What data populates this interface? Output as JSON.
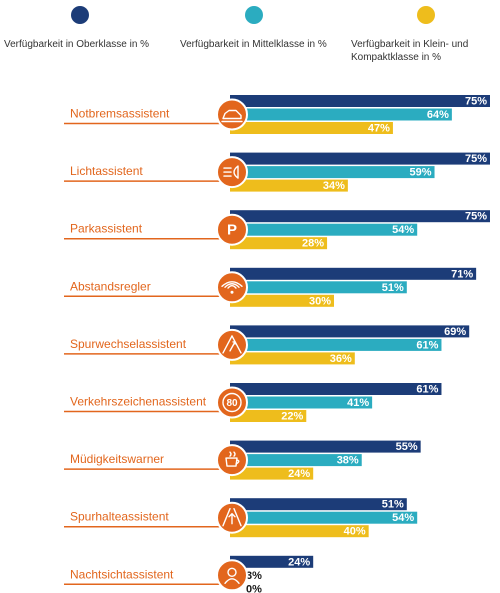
{
  "legend": [
    {
      "label": "Verfügbarkeit in Oberklasse in %",
      "color": "#1c3c78"
    },
    {
      "label": "Verfügbarkeit in Mittelklasse in %",
      "color": "#2bacc0"
    },
    {
      "label": "Verfügbarkeit in Klein- und Kompaktklasse in %",
      "color": "#eebd1c"
    }
  ],
  "colors": {
    "accent": "#e2661d",
    "oberklasse": "#1c3c78",
    "mittelklasse": "#2bacc0",
    "kompaktklasse": "#eebd1c"
  },
  "chart_data": {
    "type": "bar",
    "orientation": "horizontal",
    "categories": [
      "Notbremsassistent",
      "Lichtassistent",
      "Parkassistent",
      "Abstandsregler",
      "Spurwechselassistent",
      "Verkehrszeichenassistent",
      "Müdigkeitswarner",
      "Spurhalteassistent",
      "Nachtsichtassistent"
    ],
    "icons": [
      "car-brake-icon",
      "headlight-icon",
      "parking-icon",
      "distance-waves-icon",
      "lane-change-icon",
      "speed-sign-icon",
      "coffee-cup-icon",
      "lane-keep-icon",
      "night-vision-icon"
    ],
    "icon_labels": [
      "",
      "",
      "P",
      "",
      "",
      "80",
      "",
      "",
      ""
    ],
    "series": [
      {
        "name": "Verfügbarkeit in Oberklasse in %",
        "values": [
          75,
          75,
          75,
          71,
          69,
          61,
          55,
          51,
          24
        ]
      },
      {
        "name": "Verfügbarkeit in Mittelklasse in %",
        "values": [
          64,
          59,
          54,
          51,
          61,
          41,
          38,
          54,
          3
        ]
      },
      {
        "name": "Verfügbarkeit in Klein- und Kompaktklasse in %",
        "values": [
          47,
          34,
          28,
          30,
          36,
          22,
          24,
          40,
          0
        ]
      }
    ],
    "value_suffix": "%",
    "xlim": [
      0,
      75
    ],
    "grid": false,
    "legend_position": "top"
  }
}
